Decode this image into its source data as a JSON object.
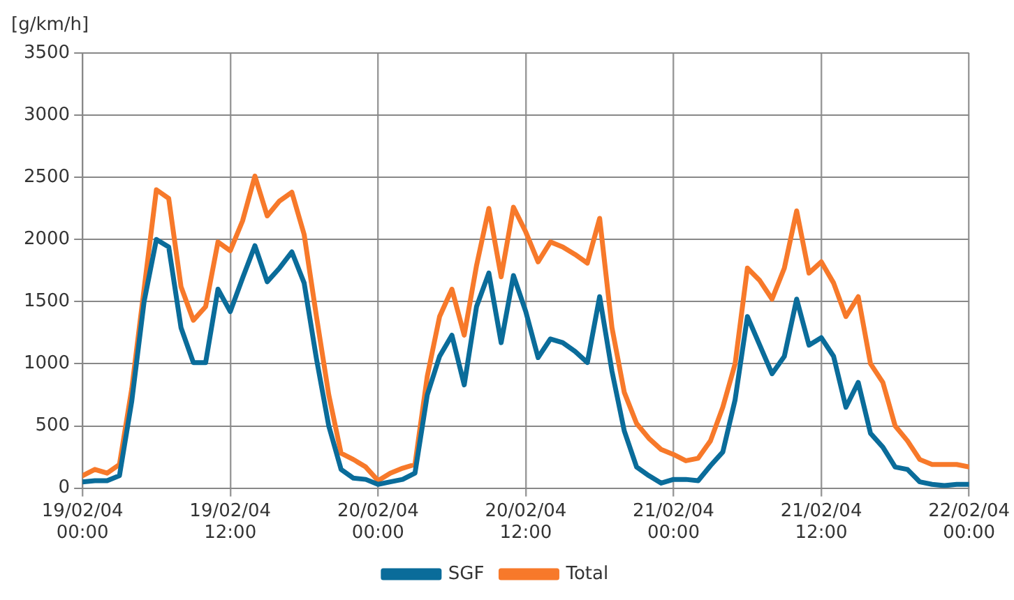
{
  "chart_data": {
    "type": "line",
    "ylabel": "[g/km/h]",
    "x": [
      "--02-19T00:00",
      "--02-19T01:00",
      "--02-19T02:00",
      "--02-19T03:00",
      "--02-19T04:00",
      "--02-19T05:00",
      "--02-19T06:00",
      "--02-19T07:00",
      "--02-19T08:00",
      "--02-19T09:00",
      "--02-19T10:00",
      "--02-19T11:00",
      "--02-19T12:00",
      "--02-19T13:00",
      "--02-19T14:00",
      "--02-19T15:00",
      "--02-19T16:00",
      "--02-19T17:00",
      "--02-19T18:00",
      "--02-19T19:00",
      "--02-19T20:00",
      "--02-19T21:00",
      "--02-19T22:00",
      "--02-19T23:00",
      "--02-20T00:00",
      "--02-20T01:00",
      "--02-20T02:00",
      "--02-20T03:00",
      "--02-20T04:00",
      "--02-20T05:00",
      "--02-20T06:00",
      "--02-20T07:00",
      "--02-20T08:00",
      "--02-20T09:00",
      "--02-20T10:00",
      "--02-20T11:00",
      "--02-20T12:00",
      "--02-20T13:00",
      "--02-20T14:00",
      "--02-20T15:00",
      "--02-20T16:00",
      "--02-20T17:00",
      "--02-20T18:00",
      "--02-20T19:00",
      "--02-20T20:00",
      "--02-20T21:00",
      "--02-20T22:00",
      "--02-20T23:00",
      "--02-21T00:00",
      "--02-21T01:00",
      "--02-21T02:00",
      "--02-21T03:00",
      "--02-21T04:00",
      "--02-21T05:00",
      "--02-21T06:00",
      "--02-21T07:00",
      "--02-21T08:00",
      "--02-21T09:00",
      "--02-21T10:00",
      "--02-21T11:00",
      "--02-21T12:00",
      "--02-21T13:00",
      "--02-21T14:00",
      "--02-21T15:00",
      "--02-21T16:00",
      "--02-21T17:00",
      "--02-21T18:00",
      "--02-21T19:00",
      "--02-21T20:00",
      "--02-21T21:00",
      "--02-21T22:00",
      "--02-21T23:00",
      "--02-22T00:00"
    ],
    "series": [
      {
        "name": "SGF",
        "color": "#0a6c9a",
        "values": [
          50,
          60,
          60,
          100,
          700,
          1500,
          2000,
          1940,
          1290,
          1010,
          1010,
          1600,
          1420,
          1690,
          1950,
          1660,
          1770,
          1900,
          1650,
          1040,
          500,
          150,
          80,
          70,
          30,
          50,
          70,
          120,
          750,
          1060,
          1230,
          830,
          1460,
          1730,
          1170,
          1710,
          1420,
          1050,
          1200,
          1170,
          1100,
          1010,
          1540,
          940,
          460,
          170,
          100,
          40,
          70,
          70,
          60,
          180,
          290,
          710,
          1380,
          1150,
          920,
          1060,
          1520,
          1150,
          1210,
          1060,
          650,
          850,
          440,
          330,
          170,
          150,
          50,
          30,
          20,
          30,
          30
        ]
      },
      {
        "name": "Total",
        "color": "#f7792a",
        "values": [
          100,
          150,
          120,
          190,
          800,
          1600,
          2400,
          2330,
          1620,
          1350,
          1460,
          1980,
          1910,
          2150,
          2510,
          2190,
          2310,
          2380,
          2040,
          1380,
          750,
          280,
          230,
          170,
          60,
          120,
          160,
          190,
          900,
          1380,
          1600,
          1230,
          1790,
          2250,
          1700,
          2260,
          2060,
          1820,
          1980,
          1940,
          1880,
          1810,
          2170,
          1290,
          770,
          520,
          400,
          310,
          270,
          220,
          240,
          380,
          650,
          1000,
          1770,
          1670,
          1520,
          1770,
          2230,
          1730,
          1820,
          1650,
          1380,
          1540,
          1000,
          850,
          500,
          380,
          230,
          190,
          190,
          190,
          170
        ]
      }
    ],
    "xlim": [
      "--02-19T00:00",
      "--02-22T00:00"
    ],
    "xticks": [
      {
        "value": "--02-19T00:00",
        "label": "19/02/04 00:00"
      },
      {
        "value": "--02-19T12:00",
        "label": "19/02/04 12:00"
      },
      {
        "value": "--02-20T00:00",
        "label": "20/02/04 00:00"
      },
      {
        "value": "--02-20T12:00",
        "label": "20/02/04 12:00"
      },
      {
        "value": "--02-21T00:00",
        "label": "21/02/04 00:00"
      },
      {
        "value": "--02-21T12:00",
        "label": "21/02/04 12:00"
      },
      {
        "value": "--02-22T00:00",
        "label": "22/02/04 00:00"
      }
    ],
    "ylim": [
      0,
      3500
    ],
    "yticks": [
      0,
      500,
      1000,
      1500,
      2000,
      2500,
      3000,
      3500
    ],
    "grid": true,
    "legend": "bottom",
    "marker": "none",
    "line_style": "solid"
  }
}
